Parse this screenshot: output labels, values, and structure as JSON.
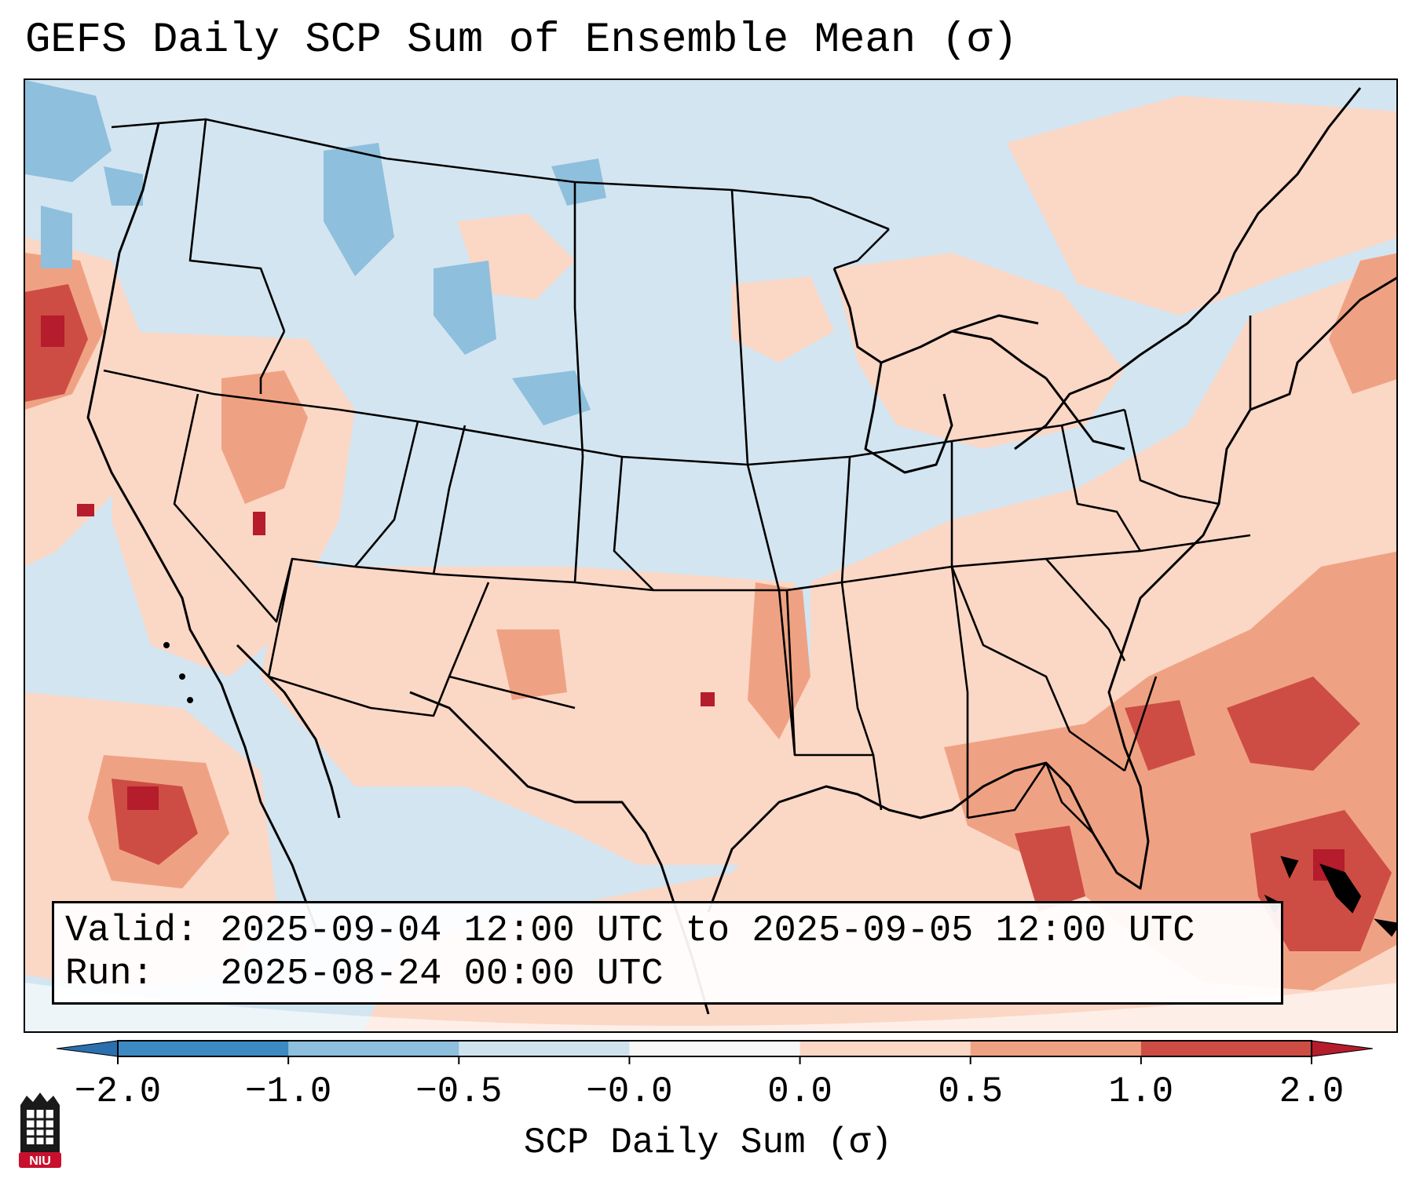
{
  "title": "GEFS Daily SCP Sum of Ensemble Mean (σ)",
  "valid_label": "Valid: 2025-09-04 12:00 UTC to 2025-09-05 12:00 UTC",
  "run_label": "Run:   2025-08-24 00:00 UTC",
  "colorbar": {
    "label": "SCP Daily Sum (σ)",
    "ticks": [
      "−2.0",
      "−1.0",
      "−0.5",
      "−0.0",
      "0.0",
      "0.5",
      "1.0",
      "2.0"
    ],
    "colors": [
      "#3d8ac2",
      "#8ebfdd",
      "#cfe3ef",
      "#f7f7f7",
      "#fbd7c6",
      "#efa283",
      "#cd4d44"
    ],
    "under_color": "#2b6fae",
    "over_color": "#b51c2c"
  },
  "logo": {
    "text": "NIU",
    "color": "#c8102e"
  }
}
